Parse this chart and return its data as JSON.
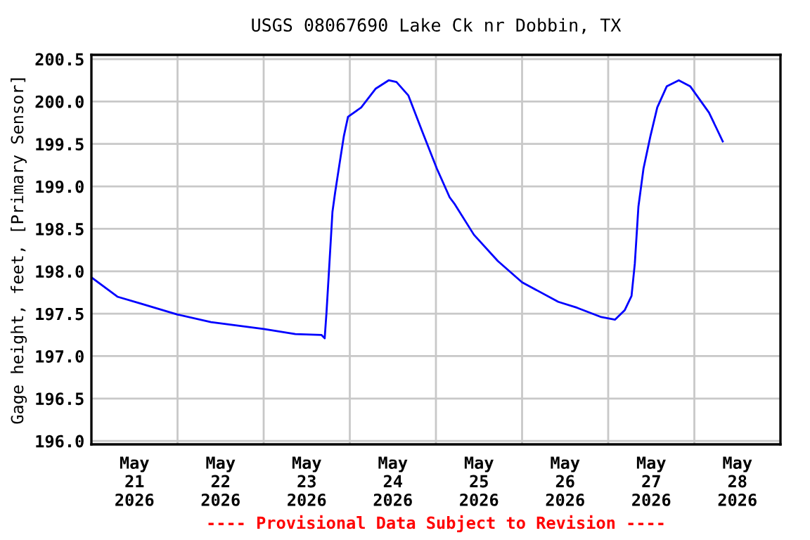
{
  "chart_data": {
    "type": "line",
    "title": "USGS 08067690 Lake Ck nr Dobbin, TX",
    "ylabel": "Gage height, feet, [Primary Sensor]",
    "annotations": [
      "---- Provisional Data Subject to Revision ----"
    ],
    "x": [
      "2026-05-21T00:15",
      "2026-05-21T07:15",
      "2026-05-21T13:40",
      "2026-05-22T00:00",
      "2026-05-22T09:20",
      "2026-05-23T00:00",
      "2026-05-23T08:50",
      "2026-05-23T16:05",
      "2026-05-23T17:00",
      "2026-05-23T17:30",
      "2026-05-23T18:15",
      "2026-05-23T19:10",
      "2026-05-23T19:55",
      "2026-05-23T21:20",
      "2026-05-23T22:20",
      "2026-05-23T23:30",
      "2026-05-24T03:10",
      "2026-05-24T07:10",
      "2026-05-24T10:50",
      "2026-05-24T13:00",
      "2026-05-24T16:20",
      "2026-05-24T20:10",
      "2026-05-25T00:15",
      "2026-05-25T03:50",
      "2026-05-25T05:15",
      "2026-05-25T10:35",
      "2026-05-25T17:15",
      "2026-05-26T00:00",
      "2026-05-26T10:05",
      "2026-05-26T15:20",
      "2026-05-26T22:05",
      "2026-05-27T01:55",
      "2026-05-27T04:35",
      "2026-05-27T06:30",
      "2026-05-27T07:25",
      "2026-05-27T08:25",
      "2026-05-27T09:50",
      "2026-05-27T11:45",
      "2026-05-27T13:40",
      "2026-05-27T16:20",
      "2026-05-27T19:40",
      "2026-05-27T22:50",
      "2026-05-28T04:05",
      "2026-05-28T07:55"
    ],
    "series": [
      {
        "color": "#0000ff",
        "values": [
          197.92,
          197.7,
          197.62,
          197.49,
          197.4,
          197.32,
          197.26,
          197.25,
          197.21,
          197.51,
          198.04,
          198.7,
          198.93,
          199.32,
          199.59,
          199.82,
          199.93,
          200.15,
          200.25,
          200.23,
          200.07,
          199.65,
          199.21,
          198.87,
          198.79,
          198.43,
          198.12,
          197.87,
          197.64,
          197.57,
          197.46,
          197.43,
          197.54,
          197.71,
          198.09,
          198.76,
          199.21,
          199.59,
          199.93,
          200.18,
          200.25,
          200.18,
          199.87,
          199.53
        ]
      }
    ],
    "xlim": [
      "2026-05-21T00:00",
      "2026-05-29T00:00"
    ],
    "xticks": [
      {
        "value": "2026-05-21T12:00",
        "label": "May\n21\n2026"
      },
      {
        "value": "2026-05-22T12:00",
        "label": "May\n22\n2026"
      },
      {
        "value": "2026-05-23T12:00",
        "label": "May\n23\n2026"
      },
      {
        "value": "2026-05-24T12:00",
        "label": "May\n24\n2026"
      },
      {
        "value": "2026-05-25T12:00",
        "label": "May\n25\n2026"
      },
      {
        "value": "2026-05-26T12:00",
        "label": "May\n26\n2026"
      },
      {
        "value": "2026-05-27T12:00",
        "label": "May\n27\n2026"
      },
      {
        "value": "2026-05-28T12:00",
        "label": "May\n28\n2026"
      },
      {
        "value": "2026-05-22T00:00",
        "label": null
      },
      {
        "value": "2026-05-23T00:00",
        "label": null
      },
      {
        "value": "2026-05-24T00:00",
        "label": null
      },
      {
        "value": "2026-05-25T00:00",
        "label": null
      },
      {
        "value": "2026-05-26T00:00",
        "label": null
      },
      {
        "value": "2026-05-27T00:00",
        "label": null
      },
      {
        "value": "2026-05-28T00:00",
        "label": null
      }
    ],
    "ylim": [
      195.96,
      200.55
    ],
    "yticks": [
      {
        "value": 196,
        "label": "196.0"
      },
      {
        "value": 196.5,
        "label": "196.5"
      },
      {
        "value": 197,
        "label": "197.0"
      },
      {
        "value": 197.5,
        "label": "197.5"
      },
      {
        "value": 198,
        "label": "198.0"
      },
      {
        "value": 198.5,
        "label": "198.5"
      },
      {
        "value": 199,
        "label": "199.0"
      },
      {
        "value": 199.5,
        "label": "199.5"
      },
      {
        "value": 200,
        "label": "200.0"
      },
      {
        "value": 200.5,
        "label": "200.5"
      }
    ],
    "grid": true,
    "line_style": "solid",
    "marker": "none"
  }
}
